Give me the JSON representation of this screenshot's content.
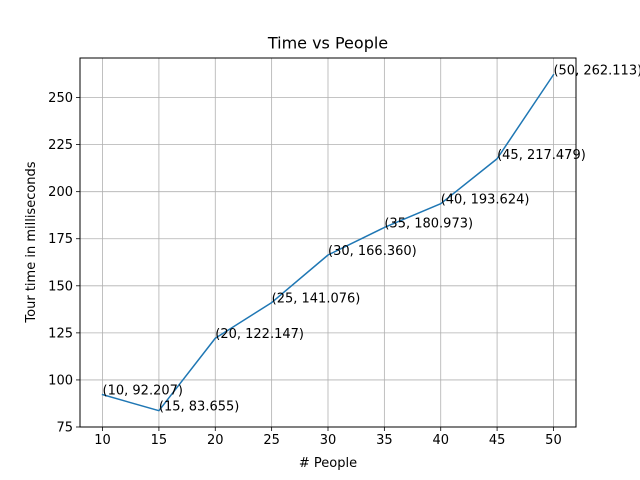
{
  "chart_data": {
    "type": "line",
    "title": "Time vs People",
    "xlabel": "# People",
    "ylabel": "Tour time in milliseconds",
    "xlim": [
      8,
      52
    ],
    "ylim": [
      75,
      271
    ],
    "x_ticks": [
      10,
      15,
      20,
      25,
      30,
      35,
      40,
      45,
      50
    ],
    "y_ticks": [
      75,
      100,
      125,
      150,
      175,
      200,
      225,
      250
    ],
    "grid": true,
    "series": [
      {
        "color": "#1f77b4",
        "points": [
          {
            "x": 10,
            "y": 92.207,
            "label": "(10, 92.207)"
          },
          {
            "x": 15,
            "y": 83.655,
            "label": "(15, 83.655)"
          },
          {
            "x": 20,
            "y": 122.147,
            "label": "(20, 122.147)"
          },
          {
            "x": 25,
            "y": 141.076,
            "label": "(25, 141.076)"
          },
          {
            "x": 30,
            "y": 166.36,
            "label": "(30, 166.360)"
          },
          {
            "x": 35,
            "y": 180.973,
            "label": "(35, 180.973)"
          },
          {
            "x": 40,
            "y": 193.624,
            "label": "(40, 193.624)"
          },
          {
            "x": 45,
            "y": 217.479,
            "label": "(45, 217.479)"
          },
          {
            "x": 50,
            "y": 262.113,
            "label": "(50, 262.113)"
          }
        ]
      }
    ]
  }
}
